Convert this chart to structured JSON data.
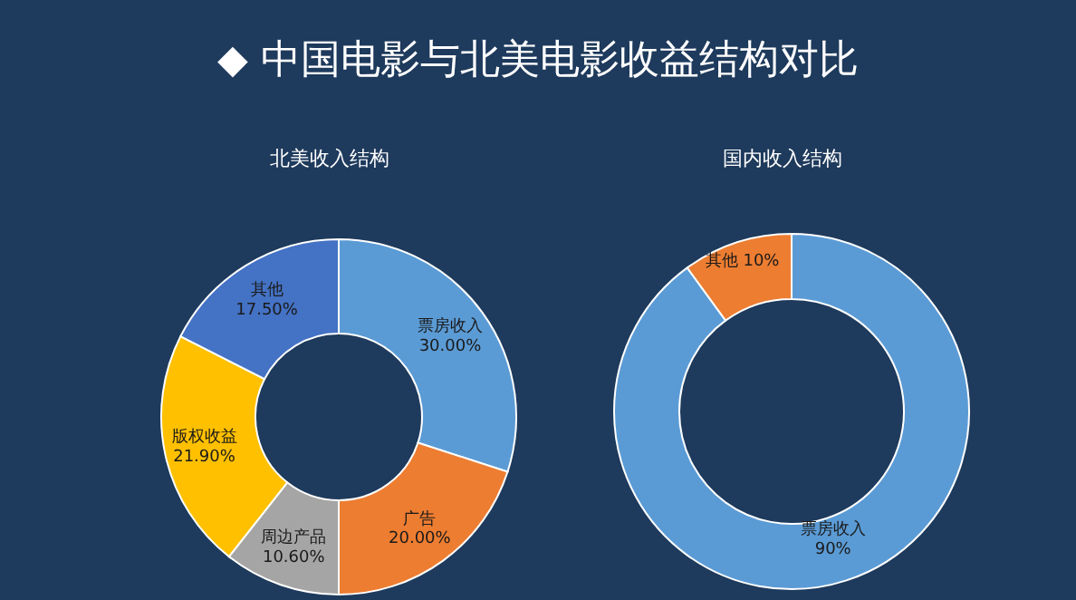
{
  "chart_data": [
    {
      "type": "donut",
      "title": "◆ 中国电影与北美电影收益结构对比",
      "subtitle": "北美收入结构",
      "categories": [
        "票房收入",
        "广告",
        "周边产品",
        "版权收益",
        "其他"
      ],
      "values": [
        30,
        20,
        10.6,
        21.9,
        17.5
      ],
      "value_labels": [
        "30.00%",
        "20.00%",
        "10.60%",
        "21.90%",
        "17.50%"
      ],
      "colors": [
        "#5b9bd5",
        "#ed7d31",
        "#a5a5a5",
        "#ffc000",
        "#4472c4"
      ],
      "legend": false
    },
    {
      "type": "donut",
      "subtitle": "国内收入结构",
      "categories": [
        "票房收入",
        "其他"
      ],
      "values": [
        90,
        10
      ],
      "value_labels": [
        "90%",
        "10%"
      ],
      "colors": [
        "#5b9bd5",
        "#ed7d31"
      ],
      "legend": false
    }
  ]
}
